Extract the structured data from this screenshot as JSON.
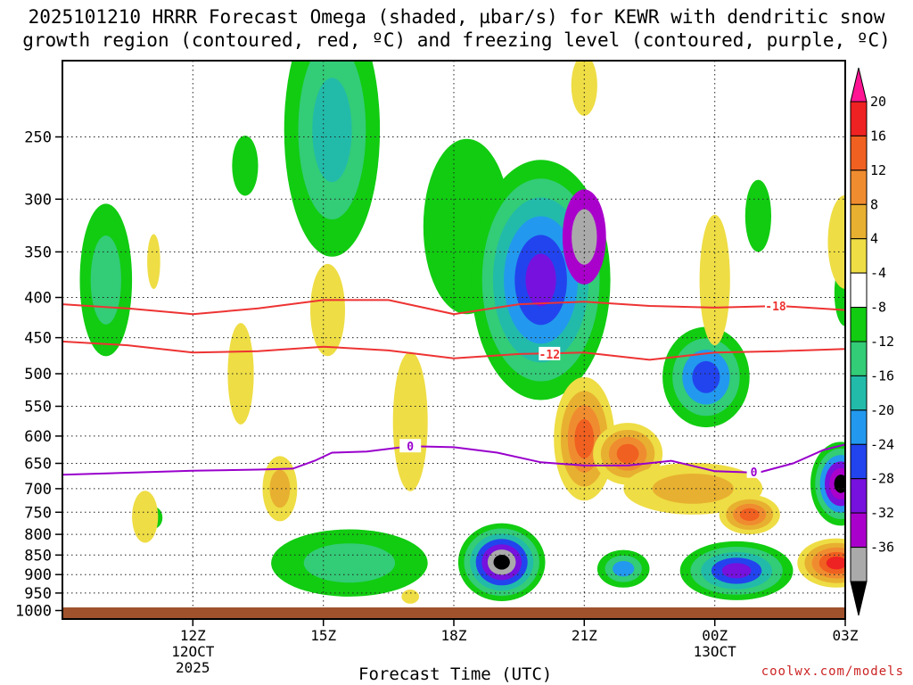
{
  "title_line1": "2025101210 HRRR Forecast Omega (shaded, µbar/s) for KEWR with dendritic snow",
  "title_line2": "growth region (contoured, red, ºC) and freezing level (contoured, purple, ºC)",
  "credit": "coolwx.com/models",
  "chart_data": {
    "type": "contour",
    "title": "2025101210 HRRR Forecast Omega (shaded, µbar/s) for KEWR with dendritic snow growth region (contoured, red, ºC) and freezing level (contoured, purple, ºC)",
    "xlabel": "Forecast Time (UTC)",
    "ylabel": "",
    "x_hours_range": [
      9.0,
      27.0
    ],
    "x_ticks": [
      {
        "hour": 12,
        "label": "12Z",
        "sub1": "12OCT",
        "sub2": "2025"
      },
      {
        "hour": 15,
        "label": "15Z",
        "sub1": "",
        "sub2": ""
      },
      {
        "hour": 18,
        "label": "18Z",
        "sub1": "",
        "sub2": ""
      },
      {
        "hour": 21,
        "label": "21Z",
        "sub1": "",
        "sub2": ""
      },
      {
        "hour": 24,
        "label": "00Z",
        "sub1": "13OCT",
        "sub2": ""
      },
      {
        "hour": 27,
        "label": "03Z",
        "sub1": "",
        "sub2": ""
      }
    ],
    "y_ticks": [
      250,
      300,
      350,
      400,
      450,
      500,
      550,
      600,
      650,
      700,
      750,
      800,
      850,
      900,
      950,
      1000
    ],
    "y_range_hPa": [
      200,
      1025
    ],
    "colorbar": {
      "labels": [
        "20",
        "16",
        "12",
        "8",
        "4",
        "-4",
        "-8",
        "-12",
        "-16",
        "-20",
        "-24",
        "-28",
        "-32",
        "-36"
      ],
      "colors": [
        "#ff1493",
        "#ee2222",
        "#f06020",
        "#f08c30",
        "#e8b030",
        "#eedd44",
        "#ffffff",
        "#11cc11",
        "#33cc77",
        "#22bbaa",
        "#2299ee",
        "#2244ee",
        "#7711dd",
        "#aa00cc",
        "#aaaaaa",
        "#000000"
      ]
    },
    "freezing_level": {
      "label": "0",
      "color": "#9900cc",
      "points": [
        [
          9.0,
          672
        ],
        [
          10.5,
          668
        ],
        [
          12.0,
          664
        ],
        [
          13.5,
          662
        ],
        [
          14.3,
          660
        ],
        [
          14.8,
          645
        ],
        [
          15.2,
          630
        ],
        [
          16.0,
          628
        ],
        [
          17.0,
          618
        ],
        [
          18.0,
          620
        ],
        [
          19.0,
          630
        ],
        [
          20.0,
          648
        ],
        [
          21.0,
          654
        ],
        [
          22.0,
          654
        ],
        [
          23.0,
          645
        ],
        [
          24.0,
          665
        ],
        [
          25.0,
          668
        ],
        [
          25.8,
          650
        ],
        [
          26.5,
          625
        ],
        [
          27.0,
          615
        ]
      ]
    },
    "dgz_contours": [
      {
        "label": "-18",
        "color": "#ee3333",
        "points": [
          [
            9.0,
            408
          ],
          [
            10.5,
            413
          ],
          [
            12.0,
            420
          ],
          [
            13.5,
            413
          ],
          [
            15.0,
            403
          ],
          [
            16.5,
            403
          ],
          [
            18.0,
            420
          ],
          [
            19.5,
            408
          ],
          [
            21.0,
            405
          ],
          [
            22.5,
            410
          ],
          [
            24.0,
            412
          ],
          [
            25.5,
            410
          ],
          [
            27.0,
            415
          ]
        ]
      },
      {
        "label": "-12",
        "color": "#ee3333",
        "points": [
          [
            9.0,
            455
          ],
          [
            10.5,
            460
          ],
          [
            12.0,
            470
          ],
          [
            13.5,
            468
          ],
          [
            15.0,
            462
          ],
          [
            16.5,
            467
          ],
          [
            18.0,
            478
          ],
          [
            19.5,
            472
          ],
          [
            21.0,
            470
          ],
          [
            22.5,
            480
          ],
          [
            24.0,
            470
          ],
          [
            25.5,
            468
          ],
          [
            27.0,
            465
          ]
        ]
      }
    ],
    "omega_features": [
      {
        "hour": 10.0,
        "p": 380,
        "sx": 0.6,
        "sp": 95,
        "levels": [
          -6,
          -10
        ]
      },
      {
        "hour": 13.2,
        "p": 272,
        "sx": 0.3,
        "sp": 25,
        "levels": [
          -6
        ]
      },
      {
        "hour": 15.2,
        "p": 245,
        "sx": 1.1,
        "sp": 110,
        "levels": [
          -6,
          -10,
          -15
        ]
      },
      {
        "hour": 18.3,
        "p": 325,
        "sx": 1.0,
        "sp": 95,
        "levels": [
          -6
        ]
      },
      {
        "hour": 20.0,
        "p": 380,
        "sx": 1.6,
        "sp": 160,
        "levels": [
          -6,
          -10,
          -14,
          -18,
          -22,
          -26
        ]
      },
      {
        "hour": 21.0,
        "p": 335,
        "sx": 0.5,
        "sp": 50,
        "levels": [
          -30,
          -34
        ]
      },
      {
        "hour": 23.8,
        "p": 505,
        "sx": 1.0,
        "sp": 80,
        "levels": [
          -6,
          -10,
          -16,
          -22
        ]
      },
      {
        "hour": 25.0,
        "p": 315,
        "sx": 0.3,
        "sp": 35,
        "levels": [
          -6
        ]
      },
      {
        "hour": 27.0,
        "p": 395,
        "sx": 0.25,
        "sp": 40,
        "levels": [
          -6
        ]
      },
      {
        "hour": 19.1,
        "p": 868,
        "sx": 1.0,
        "sp": 105,
        "levels": [
          -6,
          -10,
          -14,
          -20,
          -26,
          -32,
          -36
        ]
      },
      {
        "hour": 24.5,
        "p": 890,
        "sx": 1.3,
        "sp": 80,
        "levels": [
          -6,
          -10,
          -14,
          -20,
          -26
        ]
      },
      {
        "hour": 21.9,
        "p": 885,
        "sx": 0.6,
        "sp": 50,
        "levels": [
          -6,
          -10,
          -16
        ]
      },
      {
        "hour": 15.6,
        "p": 870,
        "sx": 1.8,
        "sp": 90,
        "levels": [
          -6,
          -10
        ]
      },
      {
        "hour": 26.9,
        "p": 690,
        "sx": 0.7,
        "sp": 90,
        "levels": [
          -6,
          -10,
          -16,
          -24,
          -30,
          -36
        ]
      },
      {
        "hour": 11.1,
        "p": 762,
        "sx": 0.2,
        "sp": 25,
        "levels": [
          -6
        ]
      }
    ],
    "omega_updraft_features": [
      {
        "hour": 10.9,
        "p": 760,
        "sx": 0.3,
        "sp": 60,
        "levels": [
          4,
          6
        ]
      },
      {
        "hour": 13.1,
        "p": 500,
        "sx": 0.3,
        "sp": 80,
        "levels": [
          4,
          6
        ]
      },
      {
        "hour": 14.0,
        "p": 700,
        "sx": 0.4,
        "sp": 70,
        "levels": [
          4,
          8
        ]
      },
      {
        "hour": 15.1,
        "p": 415,
        "sx": 0.4,
        "sp": 60,
        "levels": [
          4
        ]
      },
      {
        "hour": 17.0,
        "p": 575,
        "sx": 0.4,
        "sp": 130,
        "levels": [
          4,
          6
        ]
      },
      {
        "hour": 21.0,
        "p": 605,
        "sx": 0.7,
        "sp": 120,
        "levels": [
          4,
          8,
          12,
          16
        ]
      },
      {
        "hour": 22.0,
        "p": 632,
        "sx": 0.8,
        "sp": 60,
        "levels": [
          4,
          8,
          12,
          16
        ]
      },
      {
        "hour": 23.5,
        "p": 700,
        "sx": 1.6,
        "sp": 55,
        "levels": [
          4,
          8
        ]
      },
      {
        "hour": 24.8,
        "p": 755,
        "sx": 0.7,
        "sp": 45,
        "levels": [
          4,
          8,
          12,
          16
        ]
      },
      {
        "hour": 26.8,
        "p": 870,
        "sx": 0.9,
        "sp": 65,
        "levels": [
          4,
          8,
          12,
          16,
          20
        ]
      },
      {
        "hour": 24.0,
        "p": 380,
        "sx": 0.35,
        "sp": 80,
        "levels": [
          4,
          6
        ]
      },
      {
        "hour": 27.0,
        "p": 340,
        "sx": 0.4,
        "sp": 50,
        "levels": [
          4
        ]
      },
      {
        "hour": 21.0,
        "p": 215,
        "sx": 0.3,
        "sp": 20,
        "levels": [
          4
        ]
      },
      {
        "hour": 11.1,
        "p": 360,
        "sx": 0.15,
        "sp": 30,
        "levels": [
          4
        ]
      },
      {
        "hour": 17.0,
        "p": 960,
        "sx": 0.2,
        "sp": 20,
        "levels": [
          4
        ]
      }
    ]
  }
}
